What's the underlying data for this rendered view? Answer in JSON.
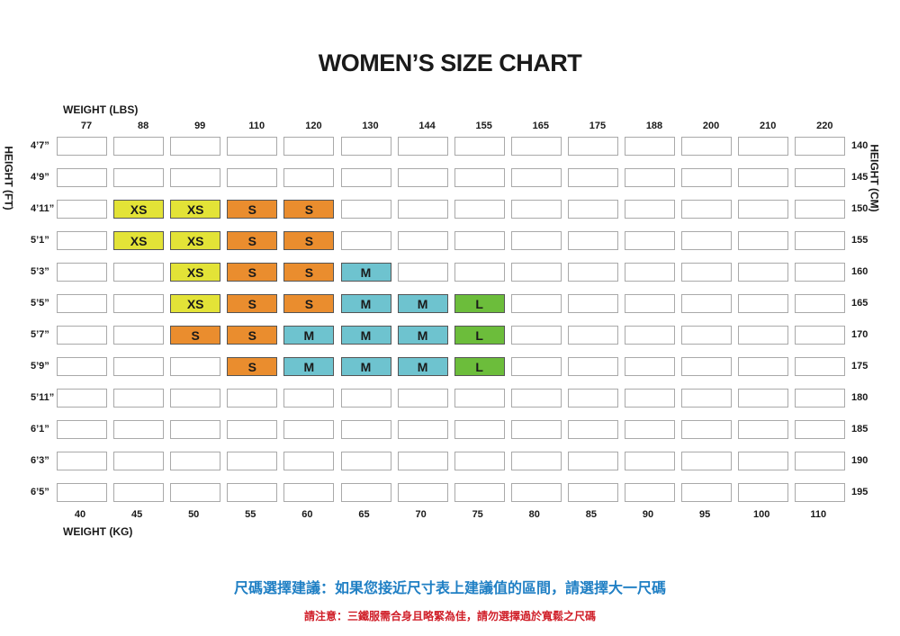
{
  "title": "WOMEN’S  SIZE CHART",
  "top_axis_label": "WEIGHT (LBS)",
  "bottom_axis_label": "WEIGHT (KG)",
  "left_axis_label": "HEIGHT (FT)",
  "right_axis_label": "HEIGHT (CM)",
  "weights_lbs": [
    "77",
    "88",
    "99",
    "110",
    "120",
    "130",
    "144",
    "155",
    "165",
    "175",
    "188",
    "200",
    "210",
    "220"
  ],
  "weights_kg": [
    "40",
    "45",
    "50",
    "55",
    "60",
    "65",
    "70",
    "75",
    "80",
    "85",
    "90",
    "95",
    "100",
    "110"
  ],
  "heights_ft": [
    "4’7”",
    "4’9”",
    "4’11”",
    "5’1”",
    "5’3”",
    "5’5”",
    "5’7”",
    "5’9”",
    "5’11”",
    "6’1”",
    "6’3”",
    "6’5”"
  ],
  "heights_cm": [
    "140",
    "145",
    "150",
    "155",
    "160",
    "165",
    "170",
    "175",
    "180",
    "185",
    "190",
    "195"
  ],
  "size_colors": {
    "XS": "#e3e337",
    "S": "#ea8d2e",
    "M": "#6ec3cf",
    "L": "#6cbd3b"
  },
  "grid": [
    [
      "",
      "",
      "",
      "",
      "",
      "",
      "",
      "",
      "",
      "",
      "",
      "",
      "",
      ""
    ],
    [
      "",
      "",
      "",
      "",
      "",
      "",
      "",
      "",
      "",
      "",
      "",
      "",
      "",
      ""
    ],
    [
      "",
      "XS",
      "XS",
      "S",
      "S",
      "",
      "",
      "",
      "",
      "",
      "",
      "",
      "",
      ""
    ],
    [
      "",
      "XS",
      "XS",
      "S",
      "S",
      "",
      "",
      "",
      "",
      "",
      "",
      "",
      "",
      ""
    ],
    [
      "",
      "",
      "XS",
      "S",
      "S",
      "M",
      "",
      "",
      "",
      "",
      "",
      "",
      "",
      ""
    ],
    [
      "",
      "",
      "XS",
      "S",
      "S",
      "M",
      "M",
      "L",
      "",
      "",
      "",
      "",
      "",
      ""
    ],
    [
      "",
      "",
      "S",
      "S",
      "M",
      "M",
      "M",
      "L",
      "",
      "",
      "",
      "",
      "",
      ""
    ],
    [
      "",
      "",
      "",
      "S",
      "M",
      "M",
      "M",
      "L",
      "",
      "",
      "",
      "",
      "",
      ""
    ],
    [
      "",
      "",
      "",
      "",
      "",
      "",
      "",
      "",
      "",
      "",
      "",
      "",
      "",
      ""
    ],
    [
      "",
      "",
      "",
      "",
      "",
      "",
      "",
      "",
      "",
      "",
      "",
      "",
      "",
      ""
    ],
    [
      "",
      "",
      "",
      "",
      "",
      "",
      "",
      "",
      "",
      "",
      "",
      "",
      "",
      ""
    ],
    [
      "",
      "",
      "",
      "",
      "",
      "",
      "",
      "",
      "",
      "",
      "",
      "",
      "",
      ""
    ]
  ],
  "note_primary": "尺碼選擇建議：如果您接近尺寸表上建議值的區間，請選擇大一尺碼",
  "note_primary_color": "#1f7fc4",
  "note_secondary": "請注意：三鐵服需合身且略緊為佳，請勿選擇過於寬鬆之尺碼",
  "note_secondary_color": "#d0202a"
}
